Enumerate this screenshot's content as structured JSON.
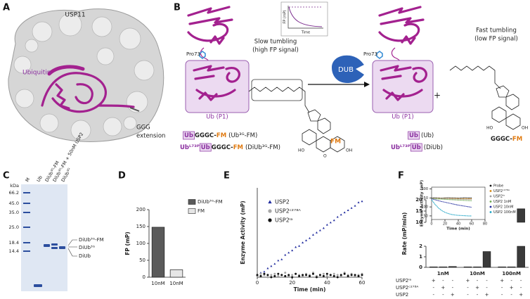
{
  "figure": {
    "panel_a": {
      "label": "A",
      "protein": "USP11",
      "ligand": "Ubiquitin",
      "extension": [
        "GGG",
        "extension"
      ]
    },
    "panel_b": {
      "label": "B",
      "pro73": "Pro73",
      "slow": [
        "Slow tumbling",
        "(high FP signal)"
      ],
      "inset_y": "FP (mP)",
      "inset_x": "Time",
      "dub": "DUB",
      "ub_p1": "Ub (P1)",
      "fm": "FM",
      "atoms": [
        "HO",
        "O",
        "OH"
      ],
      "substrates": [
        [
          "Ub",
          "GGGC-",
          "FM",
          "(Ub³ᴳ-FM)"
        ],
        [
          "Ubᴸ⁷³ᴾ",
          "Ub",
          "GGGC-",
          "FM",
          "(DiUb³ᴳ-FM)"
        ]
      ],
      "fast": [
        "Fast tumbling",
        "(low FP signal)"
      ],
      "plus": "+",
      "product": [
        "GGGC-",
        "FM"
      ],
      "products": [
        [
          "Ub",
          "(Ub)"
        ],
        [
          "Ubᴸ⁷³ᴾ",
          "Ub",
          "(DiUb)"
        ]
      ]
    },
    "panel_c": {
      "label": "C",
      "unit": "kDa",
      "ladder": [
        "66.2",
        "45.0",
        "35.0",
        "25.0",
        "18.4",
        "14.4"
      ],
      "lanes": [
        "M",
        "Ub",
        "DiUb³ᴳ-FM",
        "DiUb³ᴳ-FM + 50nM USP2",
        "DiUb³ᴳ"
      ],
      "bands": [
        "DiUb³ᴳ-FM",
        "DiUb³ᴳ",
        "DiUb"
      ]
    }
  },
  "chart_data": [
    {
      "panel": "D",
      "type": "bar",
      "ylabel": "FP (mP)",
      "categories": [
        "10nM",
        "10nM"
      ],
      "series": [
        {
          "name": "DiUb³ᴳ-FM",
          "color": "#5a5a5a",
          "values": [
            148,
            null
          ]
        },
        {
          "name": "FM",
          "color": "#e6e6e6",
          "values": [
            null,
            22
          ]
        }
      ],
      "ylim": [
        0,
        200
      ],
      "yticks": [
        0,
        50,
        100,
        150,
        200
      ],
      "legend": "upper right"
    },
    {
      "panel": "E",
      "type": "scatter",
      "xlabel": "Time (min)",
      "ylabel": "Enzyme Activity (mP)",
      "x": [
        0,
        2,
        4,
        6,
        8,
        10,
        12,
        14,
        16,
        18,
        20,
        22,
        24,
        26,
        28,
        30,
        32,
        34,
        36,
        38,
        40,
        42,
        44,
        46,
        48,
        50,
        52,
        54,
        56,
        58,
        60
      ],
      "series": [
        {
          "name": "USP2",
          "color": "#1f2a9e",
          "marker": "triangle",
          "values": [
            2,
            4,
            5,
            8,
            10,
            12,
            15,
            16,
            20,
            22,
            24,
            27,
            28,
            31,
            33,
            35,
            38,
            40,
            42,
            44,
            47,
            49,
            51,
            54,
            56,
            58,
            60,
            62,
            64,
            67,
            68
          ]
        },
        {
          "name": "USP2ᶜ²⁷⁸ᴬ",
          "color": "#a8a8a8",
          "marker": "circle",
          "values": [
            1,
            3,
            2,
            0,
            2,
            3,
            1,
            2,
            4,
            1,
            2,
            3,
            2,
            1,
            3,
            2,
            4,
            1,
            2,
            3,
            1,
            2,
            3,
            2,
            1,
            4,
            2,
            3,
            1,
            2,
            3
          ]
        },
        {
          "name": "USP2ᴵᵃ",
          "color": "#111111",
          "marker": "circle",
          "values": [
            2,
            1,
            3,
            2,
            0,
            1,
            3,
            2,
            1,
            2,
            0,
            3,
            1,
            2,
            2,
            1,
            3,
            0,
            2,
            1,
            3,
            2,
            1,
            0,
            2,
            3,
            1,
            2,
            2,
            1,
            2
          ]
        }
      ],
      "xlim": [
        0,
        60
      ],
      "xticks": [
        0,
        20,
        40,
        60
      ],
      "ylim": [
        0,
        80
      ],
      "legend": "upper left"
    },
    {
      "type": "line",
      "xlabel": "Time (min)",
      "ylabel": "Enzyme Activity (mP)",
      "x": [
        0,
        5,
        10,
        15,
        20,
        25,
        30,
        35,
        40,
        45,
        50,
        55,
        60
      ],
      "series": [
        {
          "name": "Probe",
          "color": "#111111",
          "values": [
            150,
            151,
            150,
            149,
            150,
            151,
            150,
            150,
            149,
            150,
            151,
            150,
            150
          ]
        },
        {
          "name": "USP2ᶜ²⁷⁸ᴬ",
          "color": "#d4860b",
          "values": [
            148,
            147,
            148,
            146,
            147,
            146,
            147,
            146,
            146,
            145,
            146,
            145,
            145
          ]
        },
        {
          "name": "USP2ᴵᵃ",
          "color": "#9a9a9a",
          "values": [
            147,
            146,
            146,
            145,
            145,
            144,
            144,
            143,
            143,
            142,
            142,
            141,
            141
          ]
        },
        {
          "name": "USP2 1nM",
          "color": "#6aa84f",
          "values": [
            146,
            145,
            144,
            143,
            142,
            141,
            140,
            139,
            138,
            137,
            136,
            135,
            134
          ]
        },
        {
          "name": "USP2 10nM",
          "color": "#1f2a9e",
          "values": [
            145,
            140,
            135,
            130,
            126,
            122,
            118,
            114,
            110,
            107,
            104,
            101,
            98
          ]
        },
        {
          "name": "USP2 100nM",
          "color": "#17a2c4",
          "values": [
            140,
            115,
            95,
            80,
            70,
            63,
            58,
            55,
            53,
            52,
            51,
            50,
            50
          ]
        }
      ],
      "xlim": [
        0,
        80
      ],
      "xticks": [
        0,
        20,
        40,
        60,
        80
      ],
      "ylim": [
        30,
        210
      ],
      "yticks": [
        50,
        100,
        150,
        200
      ],
      "legend": "right"
    },
    {
      "panel": "F",
      "type": "broken_bar",
      "ylabel": "Rate (mP/min)",
      "categories": [
        "1nM",
        "10nM",
        "100nM"
      ],
      "series": [
        {
          "name": "USP2ᴵᵃ",
          "color": "#3a3a3a",
          "values": [
            0.05,
            0.05,
            0.05
          ]
        },
        {
          "name": "USP2ᶜ²⁷⁸ᴬ",
          "color": "#3a3a3a",
          "values": [
            0.05,
            0.05,
            0.05
          ]
        },
        {
          "name": "USP2",
          "color": "#3a3a3a",
          "values": [
            0.08,
            1.5,
            16
          ]
        }
      ],
      "signs": [
        [
          "+",
          "-",
          "-",
          "+",
          "-",
          "-",
          "+",
          "-",
          "-"
        ],
        [
          "-",
          "+",
          "-",
          "-",
          "+",
          "-",
          "-",
          "+",
          "-"
        ],
        [
          "-",
          "-",
          "+",
          "-",
          "-",
          "+",
          "-",
          "-",
          "+"
        ]
      ],
      "axis_segments": [
        {
          "ylim": [
            0,
            2
          ],
          "yticks": [
            0,
            1,
            2
          ]
        },
        {
          "ylim": [
            10,
            20
          ],
          "yticks": [
            10,
            15,
            20
          ]
        }
      ]
    }
  ]
}
